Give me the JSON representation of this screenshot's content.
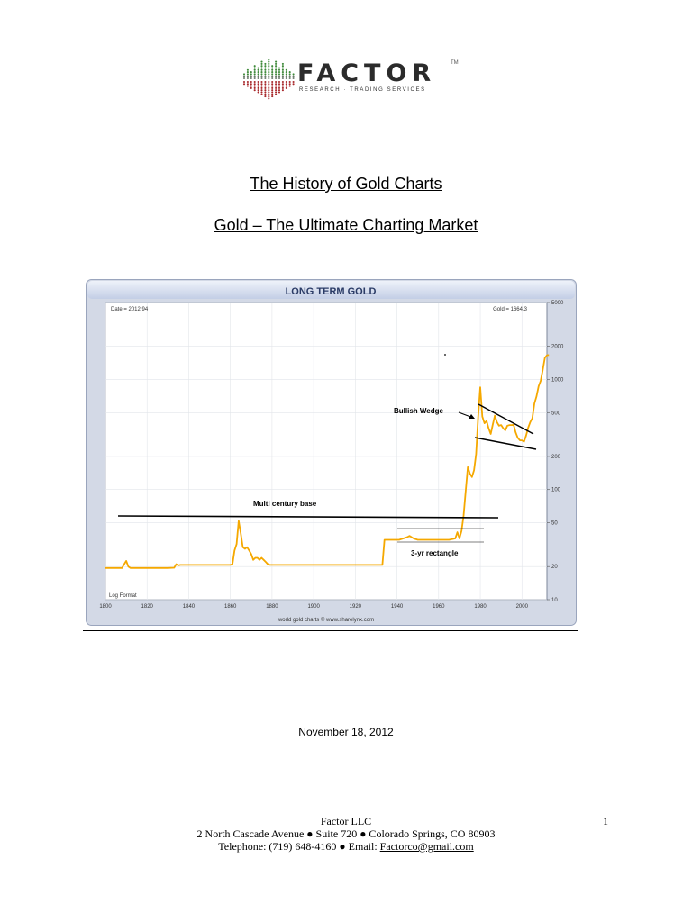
{
  "logo": {
    "wordmark": "FACTOR",
    "trademark": "TM",
    "tagline": "RESEARCH · TRADING SERVICES",
    "colors": {
      "green": "#3f8a3a",
      "red": "#a8282b",
      "dots": "#6b7a6b"
    }
  },
  "title": "The History of Gold Charts",
  "subtitle": "Gold – The Ultimate Charting Market",
  "chart_data": {
    "type": "line",
    "title": "LONG TERM GOLD",
    "header_left": "Date = 2012.94",
    "header_right": "Gold = 1664.3",
    "corner_label": "Log Format",
    "source": "world gold charts © www.sharelynx.com",
    "y_scale": "log",
    "xlim": [
      1800,
      2012
    ],
    "ylim": [
      10,
      5000
    ],
    "x_ticks": [
      "1800",
      "1820",
      "1840",
      "1860",
      "1880",
      "1900",
      "1920",
      "1940",
      "1960",
      "1980",
      "2000"
    ],
    "y_ticks": [
      "5000",
      "2000",
      "1000",
      "500",
      "200",
      "100",
      "50",
      "20",
      "10"
    ],
    "series": [
      {
        "color": "#f5a800",
        "points": [
          [
            1800,
            19.4
          ],
          [
            1805,
            19.4
          ],
          [
            1808,
            19.4
          ],
          [
            1809,
            21
          ],
          [
            1810,
            22.5
          ],
          [
            1811,
            20
          ],
          [
            1812,
            19.4
          ],
          [
            1830,
            19.4
          ],
          [
            1833,
            19.5
          ],
          [
            1834,
            21
          ],
          [
            1835,
            20.5
          ],
          [
            1836,
            20.7
          ],
          [
            1837,
            20.7
          ],
          [
            1860,
            20.7
          ],
          [
            1861,
            21
          ],
          [
            1862,
            28
          ],
          [
            1863,
            32
          ],
          [
            1864,
            52
          ],
          [
            1865,
            40
          ],
          [
            1866,
            30
          ],
          [
            1867,
            29
          ],
          [
            1868,
            30
          ],
          [
            1869,
            28
          ],
          [
            1870,
            26
          ],
          [
            1871,
            23
          ],
          [
            1872,
            24
          ],
          [
            1873,
            24
          ],
          [
            1874,
            23
          ],
          [
            1875,
            24
          ],
          [
            1876,
            23
          ],
          [
            1877,
            22
          ],
          [
            1878,
            21
          ],
          [
            1879,
            20.7
          ],
          [
            1900,
            20.7
          ],
          [
            1920,
            20.7
          ],
          [
            1933,
            20.7
          ],
          [
            1934,
            35
          ],
          [
            1940,
            35
          ],
          [
            1941,
            35
          ],
          [
            1943,
            36
          ],
          [
            1945,
            37
          ],
          [
            1946,
            38
          ],
          [
            1948,
            36
          ],
          [
            1950,
            35
          ],
          [
            1955,
            35
          ],
          [
            1960,
            35
          ],
          [
            1965,
            35
          ],
          [
            1968,
            36
          ],
          [
            1969,
            41
          ],
          [
            1970,
            36
          ],
          [
            1971,
            42
          ],
          [
            1972,
            58
          ],
          [
            1973,
            98
          ],
          [
            1974,
            160
          ],
          [
            1975,
            140
          ],
          [
            1976,
            130
          ],
          [
            1977,
            150
          ],
          [
            1978,
            210
          ],
          [
            1979,
            460
          ],
          [
            1980,
            850
          ],
          [
            1981,
            460
          ],
          [
            1982,
            400
          ],
          [
            1983,
            420
          ],
          [
            1984,
            360
          ],
          [
            1985,
            320
          ],
          [
            1986,
            390
          ],
          [
            1987,
            470
          ],
          [
            1988,
            410
          ],
          [
            1989,
            380
          ],
          [
            1990,
            385
          ],
          [
            1991,
            360
          ],
          [
            1992,
            345
          ],
          [
            1993,
            380
          ],
          [
            1994,
            385
          ],
          [
            1995,
            385
          ],
          [
            1996,
            388
          ],
          [
            1997,
            330
          ],
          [
            1998,
            295
          ],
          [
            1999,
            280
          ],
          [
            2000,
            280
          ],
          [
            2001,
            272
          ],
          [
            2002,
            310
          ],
          [
            2003,
            365
          ],
          [
            2004,
            410
          ],
          [
            2005,
            445
          ],
          [
            2006,
            605
          ],
          [
            2007,
            700
          ],
          [
            2008,
            870
          ],
          [
            2009,
            975
          ],
          [
            2010,
            1225
          ],
          [
            2011,
            1570
          ],
          [
            2012,
            1660
          ],
          [
            2012.94,
            1664.3
          ]
        ]
      }
    ],
    "annotations": [
      {
        "text": "Bullish Wedge"
      },
      {
        "text": "Multi century base"
      },
      {
        "text": "3-yr rectangle"
      }
    ]
  },
  "date": "November 18, 2012",
  "footer": {
    "company": "Factor LLC",
    "address": "2 North Cascade Avenue ● Suite 720 ● Colorado Springs, CO 80903",
    "phone_prefix": "Telephone: (719) 648-4160 ● Email: ",
    "email": "Factorco@gmail.com",
    "page_number": "1"
  }
}
